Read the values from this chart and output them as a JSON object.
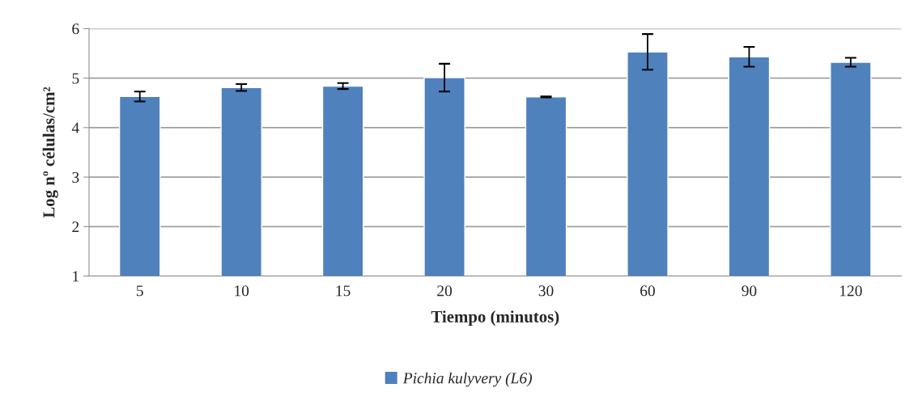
{
  "chart_data": {
    "type": "bar",
    "xlabel": "Tiempo (minutos)",
    "ylabel": "Log nº células/cm²",
    "categories": [
      "5",
      "10",
      "15",
      "20",
      "30",
      "60",
      "90",
      "120"
    ],
    "series": [
      {
        "name": "Pichia kulyvery (L6)",
        "color": "#4f81bd",
        "values": [
          4.63,
          4.81,
          4.84,
          5.01,
          4.62,
          5.53,
          5.43,
          5.32
        ],
        "errors": [
          0.1,
          0.07,
          0.06,
          0.28,
          0.01,
          0.36,
          0.2,
          0.09
        ]
      }
    ],
    "ylim": [
      1,
      6
    ],
    "yticks": [
      1,
      2,
      3,
      4,
      5,
      6
    ],
    "grid": "y",
    "legend": "bottom"
  }
}
